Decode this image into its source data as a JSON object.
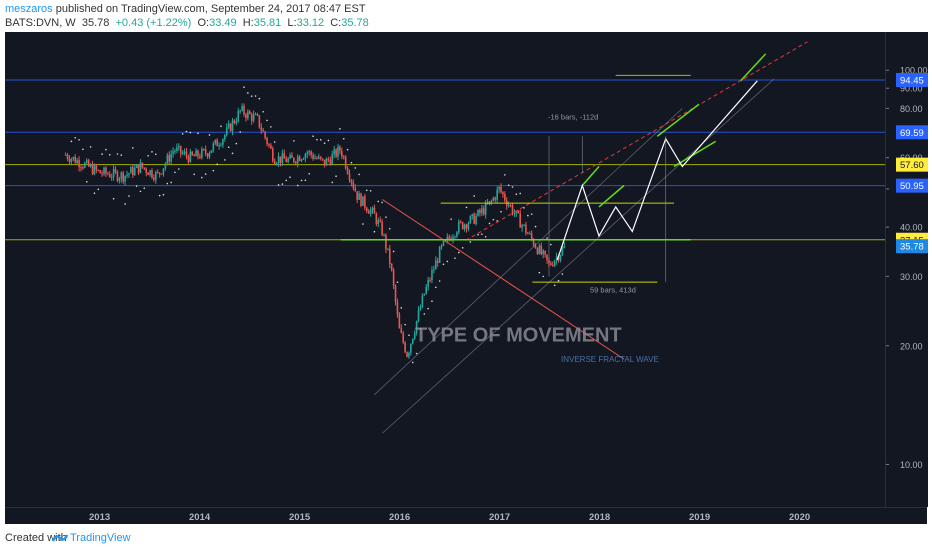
{
  "header": {
    "author": "meszaros",
    "published": " published on TradingView.com, September 24, 2017 08:47 EST",
    "symbol": "BATS:DVN, W",
    "last": "35.78",
    "change": "+0.43 (+1.22%)",
    "ohlc_o_label": "O:",
    "ohlc_o": "33.49",
    "ohlc_h_label": "H:",
    "ohlc_h": "35.81",
    "ohlc_l_label": "L:",
    "ohlc_l": "33.12",
    "ohlc_c_label": "C:",
    "ohlc_c": "35.78"
  },
  "footer": {
    "created_with": "Created with",
    "brand": "TradingView"
  },
  "annotations": {
    "type_of_movement": "TYPE OF MOVEMENT",
    "inverse_fractal_wave": "INVERSE FRACTAL WAVE",
    "measure_top": "-16 bars, -112d",
    "measure_bottom": "59 bars, 413d"
  },
  "colors": {
    "background": "#131722",
    "bull": "#26a69a",
    "bear": "#ef5350",
    "blue_line": "#2962ff",
    "yellow_line": "#c8d400",
    "green_line": "#4caf50",
    "bright_green": "#64dd17",
    "red_dashed": "#e53935",
    "projection": "#ffffff"
  },
  "chart_data": {
    "type": "candlestick",
    "symbol": "BATS:DVN",
    "interval": "W",
    "x_axis": {
      "ticks": [
        "2013",
        "2014",
        "2015",
        "2016",
        "2017",
        "2018",
        "2019",
        "2020"
      ]
    },
    "y_axis": {
      "scale": "log",
      "ticks": [
        10,
        20,
        30,
        40,
        50,
        60,
        80,
        90,
        100
      ],
      "tick_labels": [
        "10.00",
        "20.00",
        "30.00",
        "40.00",
        "50.00",
        "60.00",
        "80.00",
        "90.00",
        "100.00"
      ],
      "range": [
        7.8,
        125
      ]
    },
    "price_levels": [
      {
        "value": 94.45,
        "label": "94.45",
        "color": "blue"
      },
      {
        "value": 69.59,
        "label": "69.59",
        "color": "blue"
      },
      {
        "value": 57.6,
        "label": "57.60",
        "color": "yellow"
      },
      {
        "value": 50.95,
        "label": "50.95",
        "color": "blue"
      },
      {
        "value": 37.15,
        "label": "37.15",
        "color": "yellow"
      },
      {
        "value": 35.78,
        "label": "35.78",
        "color": "current"
      }
    ],
    "price_path": [
      {
        "date": "2012-09",
        "price": 61
      },
      {
        "date": "2012-11",
        "price": 58
      },
      {
        "date": "2013-01",
        "price": 55
      },
      {
        "date": "2013-04",
        "price": 54
      },
      {
        "date": "2013-06",
        "price": 57
      },
      {
        "date": "2013-08",
        "price": 54
      },
      {
        "date": "2013-10",
        "price": 63
      },
      {
        "date": "2013-12",
        "price": 60
      },
      {
        "date": "2014-02",
        "price": 62
      },
      {
        "date": "2014-04",
        "price": 68
      },
      {
        "date": "2014-06",
        "price": 79
      },
      {
        "date": "2014-08",
        "price": 75
      },
      {
        "date": "2014-10",
        "price": 60
      },
      {
        "date": "2014-12",
        "price": 59
      },
      {
        "date": "2015-02",
        "price": 62
      },
      {
        "date": "2015-04",
        "price": 58
      },
      {
        "date": "2015-06",
        "price": 63
      },
      {
        "date": "2015-08",
        "price": 48
      },
      {
        "date": "2015-10",
        "price": 43
      },
      {
        "date": "2015-11",
        "price": 39
      },
      {
        "date": "2015-12",
        "price": 32
      },
      {
        "date": "2016-01",
        "price": 22
      },
      {
        "date": "2016-02",
        "price": 19
      },
      {
        "date": "2016-04",
        "price": 27
      },
      {
        "date": "2016-06",
        "price": 35
      },
      {
        "date": "2016-08",
        "price": 40
      },
      {
        "date": "2016-10",
        "price": 42
      },
      {
        "date": "2016-12",
        "price": 46
      },
      {
        "date": "2017-01",
        "price": 50
      },
      {
        "date": "2017-03",
        "price": 43
      },
      {
        "date": "2017-05",
        "price": 37
      },
      {
        "date": "2017-07",
        "price": 32
      },
      {
        "date": "2017-09",
        "price": 35.78
      }
    ],
    "grid": false
  }
}
